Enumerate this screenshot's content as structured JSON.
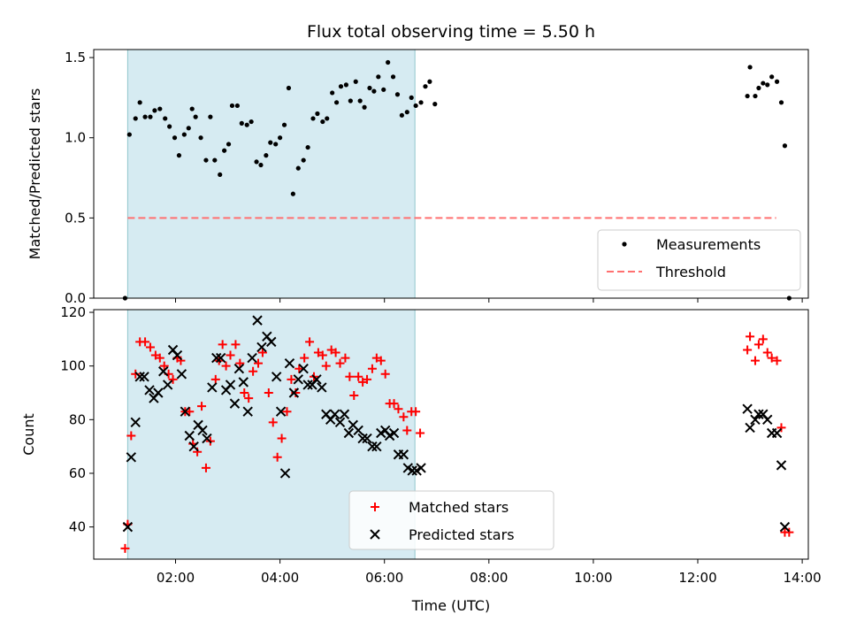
{
  "chart_data": [
    {
      "type": "scatter",
      "title": "Flux total observing time = 5.50 h",
      "ylabel": "Matched/Predicted stars",
      "xlabel": "",
      "xlim": [
        "00:26",
        "14:07"
      ],
      "ylim": [
        0,
        1.55
      ],
      "yticks": [
        0.0,
        0.5,
        1.0,
        1.5
      ],
      "ytick_labels": [
        "0.0",
        "0.5",
        "1.0",
        "1.5"
      ],
      "shaded_interval": [
        "01:05",
        "06:35"
      ],
      "threshold": {
        "name": "Threshold",
        "value": 0.5,
        "x_range": [
          "01:05",
          "13:30"
        ],
        "color": "#ff7070"
      },
      "legend": {
        "position": "lower-right",
        "entries": [
          "Measurements",
          "Threshold"
        ]
      },
      "series": [
        {
          "name": "Measurements",
          "marker": "dot",
          "color": "#000000",
          "points": [
            [
              "01:02",
              0.0
            ],
            [
              "01:07",
              1.02
            ],
            [
              "01:14",
              1.12
            ],
            [
              "01:19",
              1.22
            ],
            [
              "01:25",
              1.13
            ],
            [
              "01:31",
              1.13
            ],
            [
              "01:36",
              1.17
            ],
            [
              "01:42",
              1.18
            ],
            [
              "01:48",
              1.12
            ],
            [
              "01:53",
              1.07
            ],
            [
              "01:59",
              1.0
            ],
            [
              "02:04",
              0.89
            ],
            [
              "02:10",
              1.02
            ],
            [
              "02:15",
              1.06
            ],
            [
              "02:19",
              1.18
            ],
            [
              "02:23",
              1.13
            ],
            [
              "02:29",
              1.0
            ],
            [
              "02:35",
              0.86
            ],
            [
              "02:40",
              1.13
            ],
            [
              "02:45",
              0.86
            ],
            [
              "02:51",
              0.77
            ],
            [
              "02:56",
              0.92
            ],
            [
              "03:01",
              0.96
            ],
            [
              "03:05",
              1.2
            ],
            [
              "03:11",
              1.2
            ],
            [
              "03:16",
              1.09
            ],
            [
              "03:22",
              1.08
            ],
            [
              "03:27",
              1.1
            ],
            [
              "03:33",
              0.85
            ],
            [
              "03:38",
              0.83
            ],
            [
              "03:44",
              0.89
            ],
            [
              "03:49",
              0.97
            ],
            [
              "03:55",
              0.96
            ],
            [
              "04:00",
              1.0
            ],
            [
              "04:05",
              1.08
            ],
            [
              "04:10",
              1.31
            ],
            [
              "04:15",
              0.65
            ],
            [
              "04:21",
              0.81
            ],
            [
              "04:27",
              0.86
            ],
            [
              "04:32",
              0.94
            ],
            [
              "04:38",
              1.12
            ],
            [
              "04:43",
              1.15
            ],
            [
              "04:49",
              1.1
            ],
            [
              "04:54",
              1.12
            ],
            [
              "05:00",
              1.28
            ],
            [
              "05:05",
              1.22
            ],
            [
              "05:10",
              1.32
            ],
            [
              "05:16",
              1.33
            ],
            [
              "05:21",
              1.23
            ],
            [
              "05:27",
              1.35
            ],
            [
              "05:32",
              1.23
            ],
            [
              "05:37",
              1.19
            ],
            [
              "05:43",
              1.31
            ],
            [
              "05:48",
              1.29
            ],
            [
              "05:53",
              1.38
            ],
            [
              "05:59",
              1.3
            ],
            [
              "06:04",
              1.47
            ],
            [
              "06:10",
              1.38
            ],
            [
              "06:15",
              1.27
            ],
            [
              "06:20",
              1.14
            ],
            [
              "06:26",
              1.16
            ],
            [
              "06:31",
              1.25
            ],
            [
              "06:36",
              1.2
            ],
            [
              "06:42",
              1.22
            ],
            [
              "06:47",
              1.32
            ],
            [
              "06:52",
              1.35
            ],
            [
              "06:58",
              1.21
            ],
            [
              "12:57",
              1.26
            ],
            [
              "13:00",
              1.44
            ],
            [
              "13:06",
              1.26
            ],
            [
              "13:10",
              1.31
            ],
            [
              "13:15",
              1.34
            ],
            [
              "13:20",
              1.33
            ],
            [
              "13:25",
              1.38
            ],
            [
              "13:31",
              1.35
            ],
            [
              "13:36",
              1.22
            ],
            [
              "13:40",
              0.95
            ],
            [
              "13:45",
              0.0
            ]
          ]
        }
      ]
    },
    {
      "type": "scatter",
      "title": "",
      "ylabel": "Count",
      "xlabel": "Time (UTC)",
      "xlim": [
        "00:26",
        "14:07"
      ],
      "ylim": [
        28,
        121
      ],
      "yticks": [
        40,
        60,
        80,
        100,
        120
      ],
      "ytick_labels": [
        "40",
        "60",
        "80",
        "100",
        "120"
      ],
      "xticks": [
        "02:00",
        "04:00",
        "06:00",
        "08:00",
        "10:00",
        "12:00",
        "14:00"
      ],
      "xtick_labels": [
        "02:00",
        "04:00",
        "06:00",
        "08:00",
        "10:00",
        "12:00",
        "14:00"
      ],
      "shaded_interval": [
        "01:05",
        "06:35"
      ],
      "legend": {
        "position": "lower-center",
        "entries": [
          "Matched stars",
          "Predicted stars"
        ]
      },
      "series": [
        {
          "name": "Matched stars",
          "marker": "plus",
          "color": "#ff0000",
          "points": [
            [
              "01:02",
              32
            ],
            [
              "01:05",
              41
            ],
            [
              "01:09",
              74
            ],
            [
              "01:14",
              97
            ],
            [
              "01:19",
              109
            ],
            [
              "01:25",
              109
            ],
            [
              "01:31",
              107
            ],
            [
              "01:37",
              104
            ],
            [
              "01:42",
              103
            ],
            [
              "01:47",
              100
            ],
            [
              "01:52",
              97
            ],
            [
              "01:57",
              95
            ],
            [
              "02:02",
              103
            ],
            [
              "02:06",
              102
            ],
            [
              "02:11",
              83
            ],
            [
              "02:16",
              83
            ],
            [
              "02:20",
              71
            ],
            [
              "02:25",
              68
            ],
            [
              "02:30",
              85
            ],
            [
              "02:35",
              62
            ],
            [
              "02:40",
              72
            ],
            [
              "02:46",
              95
            ],
            [
              "02:50",
              102
            ],
            [
              "02:54",
              108
            ],
            [
              "02:58",
              100
            ],
            [
              "03:03",
              104
            ],
            [
              "03:09",
              108
            ],
            [
              "03:14",
              101
            ],
            [
              "03:19",
              90
            ],
            [
              "03:24",
              88
            ],
            [
              "03:29",
              98
            ],
            [
              "03:35",
              101
            ],
            [
              "03:40",
              105
            ],
            [
              "03:47",
              90
            ],
            [
              "03:52",
              79
            ],
            [
              "03:57",
              66
            ],
            [
              "04:02",
              73
            ],
            [
              "04:08",
              83
            ],
            [
              "04:13",
              95
            ],
            [
              "04:18",
              90
            ],
            [
              "04:22",
              99
            ],
            [
              "04:28",
              103
            ],
            [
              "04:34",
              109
            ],
            [
              "04:39",
              96
            ],
            [
              "04:44",
              105
            ],
            [
              "04:49",
              104
            ],
            [
              "04:53",
              100
            ],
            [
              "04:59",
              106
            ],
            [
              "05:04",
              105
            ],
            [
              "05:09",
              101
            ],
            [
              "05:15",
              103
            ],
            [
              "05:20",
              96
            ],
            [
              "05:25",
              89
            ],
            [
              "05:30",
              96
            ],
            [
              "05:35",
              94
            ],
            [
              "05:40",
              95
            ],
            [
              "05:46",
              99
            ],
            [
              "05:51",
              103
            ],
            [
              "05:56",
              102
            ],
            [
              "06:01",
              97
            ],
            [
              "06:06",
              86
            ],
            [
              "06:11",
              86
            ],
            [
              "06:16",
              84
            ],
            [
              "06:22",
              81
            ],
            [
              "06:26",
              76
            ],
            [
              "06:31",
              83
            ],
            [
              "06:36",
              83
            ],
            [
              "06:41",
              75
            ],
            [
              "12:57",
              106
            ],
            [
              "13:00",
              111
            ],
            [
              "13:06",
              102
            ],
            [
              "13:10",
              108
            ],
            [
              "13:15",
              110
            ],
            [
              "13:20",
              105
            ],
            [
              "13:25",
              103
            ],
            [
              "13:31",
              102
            ],
            [
              "13:36",
              77
            ],
            [
              "13:40",
              38
            ],
            [
              "13:45",
              38
            ]
          ]
        },
        {
          "name": "Predicted stars",
          "marker": "x",
          "color": "#000000",
          "points": [
            [
              "01:05",
              40
            ],
            [
              "01:09",
              66
            ],
            [
              "01:14",
              79
            ],
            [
              "01:19",
              96
            ],
            [
              "01:24",
              96
            ],
            [
              "01:30",
              91
            ],
            [
              "01:35",
              88
            ],
            [
              "01:40",
              90
            ],
            [
              "01:46",
              98
            ],
            [
              "01:51",
              93
            ],
            [
              "01:57",
              106
            ],
            [
              "02:02",
              104
            ],
            [
              "02:07",
              97
            ],
            [
              "02:11",
              83
            ],
            [
              "02:16",
              74
            ],
            [
              "02:21",
              70
            ],
            [
              "02:26",
              78
            ],
            [
              "02:31",
              76
            ],
            [
              "02:36",
              73
            ],
            [
              "02:42",
              92
            ],
            [
              "02:47",
              103
            ],
            [
              "02:52",
              103
            ],
            [
              "02:58",
              91
            ],
            [
              "03:03",
              93
            ],
            [
              "03:08",
              86
            ],
            [
              "03:13",
              99
            ],
            [
              "03:18",
              94
            ],
            [
              "03:23",
              83
            ],
            [
              "03:28",
              103
            ],
            [
              "03:34",
              117
            ],
            [
              "03:39",
              107
            ],
            [
              "03:45",
              111
            ],
            [
              "03:50",
              109
            ],
            [
              "03:56",
              96
            ],
            [
              "04:01",
              83
            ],
            [
              "04:06",
              60
            ],
            [
              "04:11",
              101
            ],
            [
              "04:16",
              90
            ],
            [
              "04:21",
              95
            ],
            [
              "04:27",
              99
            ],
            [
              "04:32",
              93
            ],
            [
              "04:37",
              93
            ],
            [
              "04:42",
              95
            ],
            [
              "04:48",
              92
            ],
            [
              "04:53",
              82
            ],
            [
              "04:58",
              80
            ],
            [
              "05:03",
              82
            ],
            [
              "05:09",
              79
            ],
            [
              "05:14",
              82
            ],
            [
              "05:19",
              75
            ],
            [
              "05:24",
              78
            ],
            [
              "05:30",
              76
            ],
            [
              "05:35",
              73
            ],
            [
              "05:40",
              73
            ],
            [
              "05:46",
              70
            ],
            [
              "05:51",
              70
            ],
            [
              "05:56",
              75
            ],
            [
              "06:01",
              76
            ],
            [
              "06:06",
              74
            ],
            [
              "06:11",
              75
            ],
            [
              "06:16",
              67
            ],
            [
              "06:22",
              67
            ],
            [
              "06:27",
              62
            ],
            [
              "06:32",
              61
            ],
            [
              "06:37",
              61
            ],
            [
              "06:42",
              62
            ],
            [
              "12:57",
              84
            ],
            [
              "13:00",
              77
            ],
            [
              "13:06",
              80
            ],
            [
              "13:10",
              82
            ],
            [
              "13:15",
              82
            ],
            [
              "13:20",
              80
            ],
            [
              "13:25",
              75
            ],
            [
              "13:31",
              75
            ],
            [
              "13:36",
              63
            ],
            [
              "13:40",
              40
            ]
          ]
        }
      ]
    }
  ]
}
